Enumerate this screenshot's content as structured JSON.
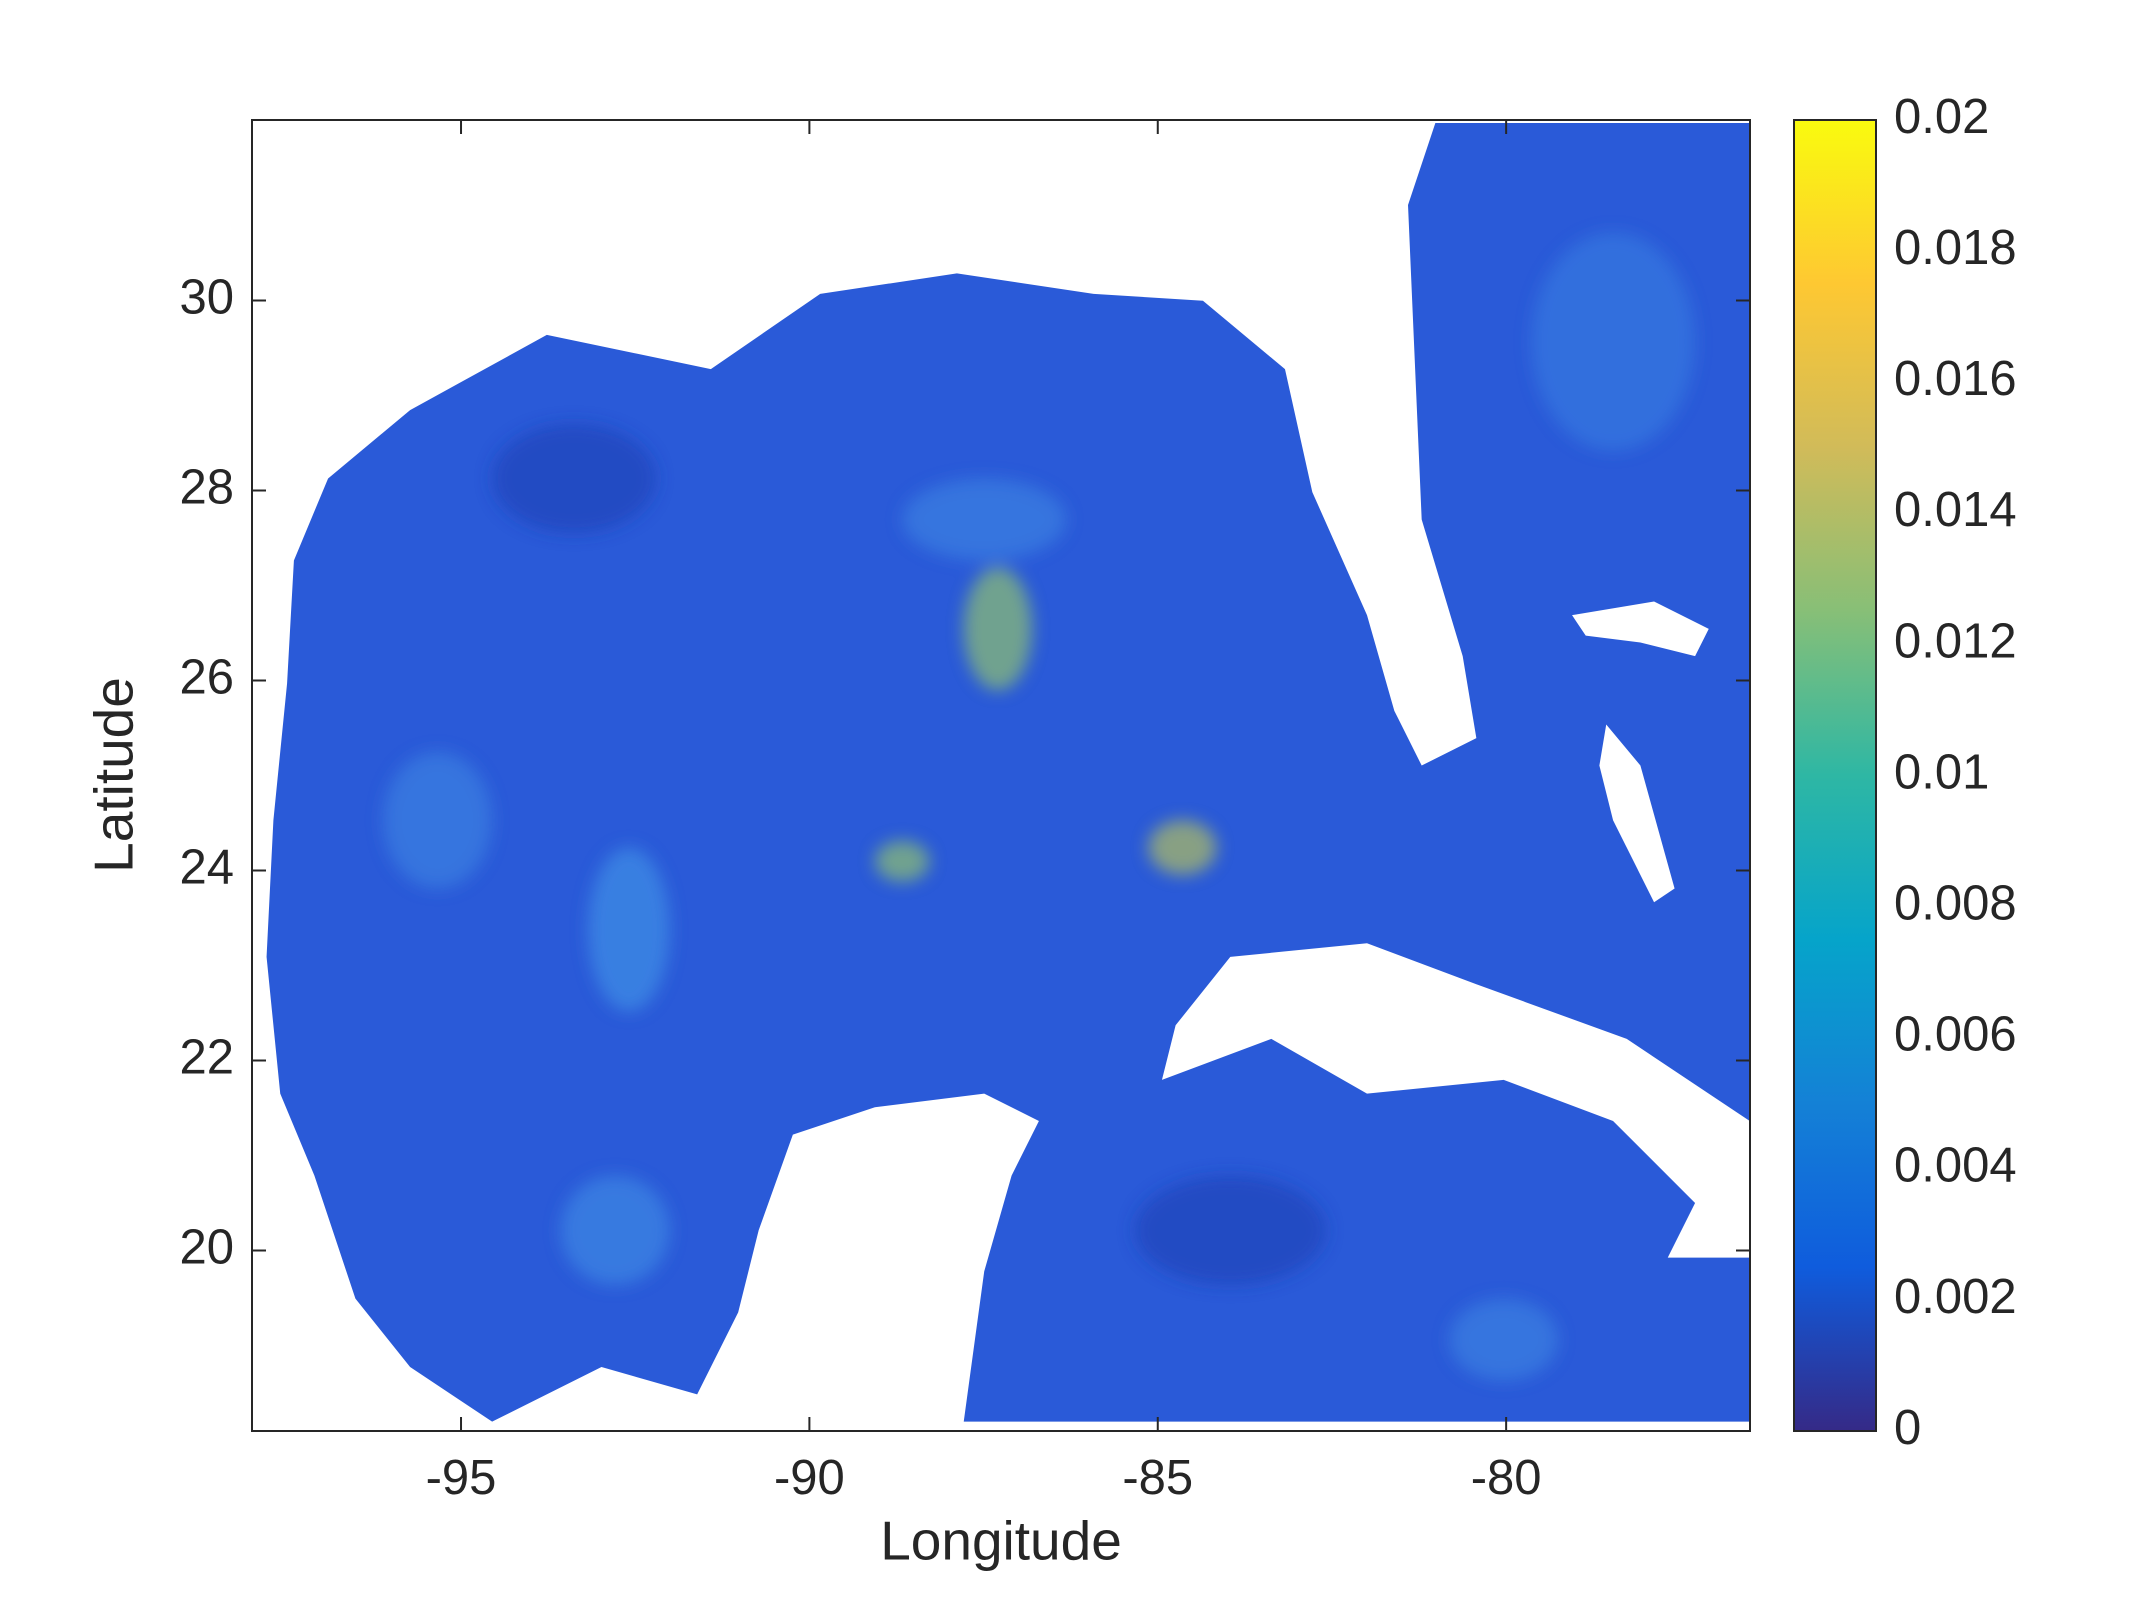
{
  "chart_data": {
    "type": "heatmap",
    "x_label": "Longitude",
    "y_label": "Latitude",
    "xlim": [
      -98,
      -76.5
    ],
    "ylim": [
      18.1,
      31.9
    ],
    "xticks": [
      -95,
      -90,
      -85,
      -80
    ],
    "yticks": [
      20,
      22,
      24,
      26,
      28,
      30
    ],
    "colorbar": {
      "lim": [
        0,
        0.02
      ],
      "ticks": [
        0,
        0.002,
        0.004,
        0.006,
        0.008,
        0.01,
        0.012,
        0.014,
        0.016,
        0.018,
        0.02
      ],
      "colormap": [
        "#352a87",
        "#0f5cdd",
        "#1481d6",
        "#06a4ca",
        "#2eb7a4",
        "#87bf77",
        "#d1bb59",
        "#fec832",
        "#f9fb0e"
      ]
    }
  }
}
